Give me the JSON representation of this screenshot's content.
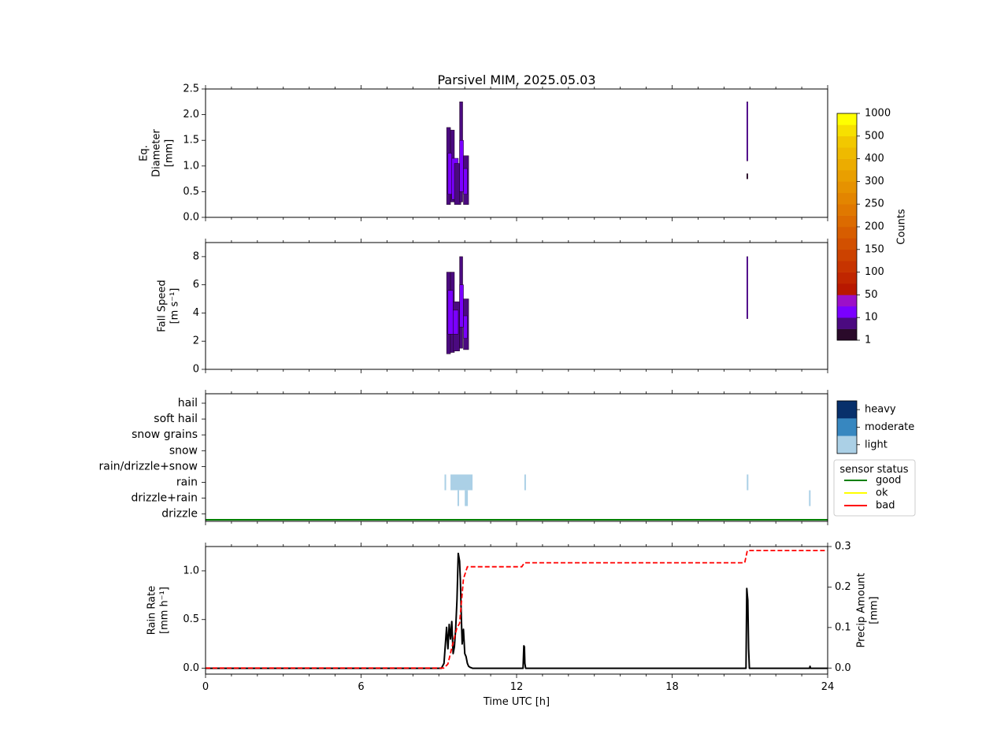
{
  "title": "Parsivel MIM, 2025.05.03",
  "chart_data": [
    {
      "type": "heatmap",
      "ylabel_lines": [
        "Eq.",
        "Diameter",
        "[mm]"
      ],
      "xlim": [
        0,
        24
      ],
      "ylim": [
        0,
        2.5
      ],
      "yticks": [
        "0.0",
        "0.5",
        "1.0",
        "1.5",
        "2.0",
        "2.5"
      ],
      "xticks": [
        0,
        6,
        12,
        18,
        24
      ],
      "cells": [
        {
          "t0": 9.3,
          "t1": 9.45,
          "y0": 0.25,
          "y1": 1.75,
          "level": 1
        },
        {
          "t0": 9.45,
          "t1": 9.6,
          "y0": 0.3,
          "y1": 1.7,
          "level": 1
        },
        {
          "t0": 9.35,
          "t1": 9.5,
          "y0": 0.45,
          "y1": 1.25,
          "level": 2
        },
        {
          "t0": 9.5,
          "t1": 9.75,
          "y0": 0.35,
          "y1": 1.15,
          "level": 2
        },
        {
          "t0": 9.6,
          "t1": 9.85,
          "y0": 0.25,
          "y1": 1.05,
          "level": 1
        },
        {
          "t0": 9.8,
          "t1": 9.92,
          "y0": 0.3,
          "y1": 2.25,
          "level": 1
        },
        {
          "t0": 9.8,
          "t1": 9.95,
          "y0": 0.5,
          "y1": 1.5,
          "level": 2
        },
        {
          "t0": 9.95,
          "t1": 10.15,
          "y0": 0.25,
          "y1": 1.2,
          "level": 1
        },
        {
          "t0": 9.95,
          "t1": 10.1,
          "y0": 0.45,
          "y1": 0.95,
          "level": 2
        },
        {
          "t0": 20.88,
          "t1": 20.92,
          "y0": 1.1,
          "y1": 2.25,
          "level": 2
        },
        {
          "t0": 20.88,
          "t1": 20.92,
          "y0": 0.75,
          "y1": 0.85,
          "level": 0
        }
      ]
    },
    {
      "type": "heatmap",
      "ylabel_lines": [
        "Fall Speed",
        "[m s⁻¹]"
      ],
      "xlim": [
        0,
        24
      ],
      "ylim": [
        0,
        9
      ],
      "yticks": [
        "0",
        "2",
        "4",
        "6",
        "8"
      ],
      "xticks": [
        0,
        6,
        12,
        18,
        24
      ],
      "cells": [
        {
          "t0": 9.3,
          "t1": 9.45,
          "y0": 1.1,
          "y1": 6.9,
          "level": 1
        },
        {
          "t0": 9.45,
          "t1": 9.6,
          "y0": 1.2,
          "y1": 6.9,
          "level": 1
        },
        {
          "t0": 9.35,
          "t1": 9.55,
          "y0": 2.5,
          "y1": 5.6,
          "level": 2
        },
        {
          "t0": 9.55,
          "t1": 9.8,
          "y0": 1.3,
          "y1": 4.8,
          "level": 1
        },
        {
          "t0": 9.55,
          "t1": 9.75,
          "y0": 2.5,
          "y1": 4.2,
          "level": 2
        },
        {
          "t0": 9.8,
          "t1": 9.92,
          "y0": 1.5,
          "y1": 8.0,
          "level": 1
        },
        {
          "t0": 9.8,
          "t1": 9.95,
          "y0": 3.0,
          "y1": 6.0,
          "level": 2
        },
        {
          "t0": 9.95,
          "t1": 10.15,
          "y0": 1.4,
          "y1": 5.0,
          "level": 1
        },
        {
          "t0": 9.95,
          "t1": 10.1,
          "y0": 2.2,
          "y1": 3.8,
          "level": 2
        },
        {
          "t0": 20.88,
          "t1": 20.92,
          "y0": 3.6,
          "y1": 8.0,
          "level": 2
        }
      ]
    },
    {
      "type": "heatmap",
      "categories": [
        "hail",
        "soft hail",
        "snow grains",
        "snow",
        "rain/drizzle+snow",
        "rain",
        "drizzle+rain",
        "drizzle"
      ],
      "xlim": [
        0,
        24
      ],
      "xticks": [
        0,
        6,
        12,
        18,
        24
      ],
      "events": [
        {
          "t0": 9.22,
          "t1": 9.28,
          "category": "rain",
          "intensity": "light"
        },
        {
          "t0": 9.45,
          "t1": 10.3,
          "category": "rain",
          "intensity": "light"
        },
        {
          "t0": 12.3,
          "t1": 12.36,
          "category": "rain",
          "intensity": "light"
        },
        {
          "t0": 20.88,
          "t1": 20.94,
          "category": "rain",
          "intensity": "light"
        },
        {
          "t0": 9.72,
          "t1": 9.78,
          "category": "drizzle+rain",
          "intensity": "light"
        },
        {
          "t0": 10.0,
          "t1": 10.12,
          "category": "drizzle+rain",
          "intensity": "light"
        },
        {
          "t0": 23.28,
          "t1": 23.34,
          "category": "drizzle+rain",
          "intensity": "light"
        }
      ],
      "sensor_status": [
        {
          "t0": 0,
          "t1": 24,
          "status": "good"
        }
      ]
    },
    {
      "type": "line",
      "xlabel": "Time UTC [h]",
      "ylabel_lines": [
        "Rain Rate",
        "[mm h⁻¹]"
      ],
      "ylabel2_lines": [
        "Precip Amount",
        "[mm]"
      ],
      "xlim": [
        0,
        24
      ],
      "ylim": [
        -0.06,
        1.25
      ],
      "ylim2": [
        -0.015,
        0.3
      ],
      "xticks": [
        "0",
        "6",
        "12",
        "18",
        "24"
      ],
      "yticks": [
        "0.0",
        "0.5",
        "1.0"
      ],
      "yticks2": [
        "0.0",
        "0.1",
        "0.2",
        "0.3"
      ],
      "series": [
        {
          "axis": "left",
          "color": "#000000",
          "style": "solid",
          "x": [
            0,
            9.1,
            9.2,
            9.3,
            9.35,
            9.4,
            9.45,
            9.5,
            9.55,
            9.6,
            9.65,
            9.7,
            9.75,
            9.8,
            9.83,
            9.87,
            9.9,
            9.95,
            10.0,
            10.05,
            10.1,
            10.15,
            10.2,
            10.3,
            12.25,
            12.28,
            12.3,
            12.32,
            12.35,
            20.85,
            20.88,
            20.9,
            20.92,
            20.95,
            20.98,
            23.3,
            23.32,
            23.34,
            24
          ],
          "y": [
            0,
            0,
            0.05,
            0.42,
            0.2,
            0.45,
            0.3,
            0.48,
            0.15,
            0.22,
            0.4,
            0.7,
            1.18,
            1.1,
            0.9,
            0.5,
            0.25,
            0.4,
            0.15,
            0.12,
            0.05,
            0.02,
            0.01,
            0,
            0,
            0.23,
            0.22,
            0.05,
            0,
            0,
            0.82,
            0.75,
            0.7,
            0.2,
            0,
            0,
            0.02,
            0,
            0
          ]
        },
        {
          "axis": "right",
          "color": "#ff0000",
          "style": "dashed",
          "x": [
            0,
            9.2,
            9.35,
            9.5,
            9.7,
            9.8,
            9.95,
            10.1,
            12.2,
            12.3,
            20.8,
            20.9,
            24
          ],
          "y": [
            0,
            0,
            0.01,
            0.05,
            0.1,
            0.11,
            0.22,
            0.25,
            0.25,
            0.26,
            0.26,
            0.29,
            0.29
          ]
        }
      ]
    }
  ],
  "counts_colorbar": {
    "label": "Counts",
    "tick_labels": [
      "1",
      "10",
      "50",
      "100",
      "150",
      "200",
      "250",
      "300",
      "400",
      "500",
      "1000"
    ],
    "colors": [
      "#2a0a2a",
      "#4b0a80",
      "#7a00ff",
      "#9c10c8",
      "#b81800",
      "#c02600",
      "#c73400",
      "#cc4200",
      "#d25000",
      "#d75d00",
      "#dc6b00",
      "#e07800",
      "#e38500",
      "#e69200",
      "#e99f00",
      "#ecac00",
      "#efba00",
      "#f2c800",
      "#f7e000",
      "#ffff00"
    ]
  },
  "intensity_colorbar": {
    "labels": [
      "heavy",
      "moderate",
      "light"
    ],
    "colors": [
      "#08306b",
      "#3787c0",
      "#abd0e6"
    ]
  },
  "sensor_legend": {
    "title": "sensor status",
    "entries": [
      {
        "label": "good",
        "color": "#008000"
      },
      {
        "label": "ok",
        "color": "#ffff00"
      },
      {
        "label": "bad",
        "color": "#ff0000"
      }
    ]
  }
}
